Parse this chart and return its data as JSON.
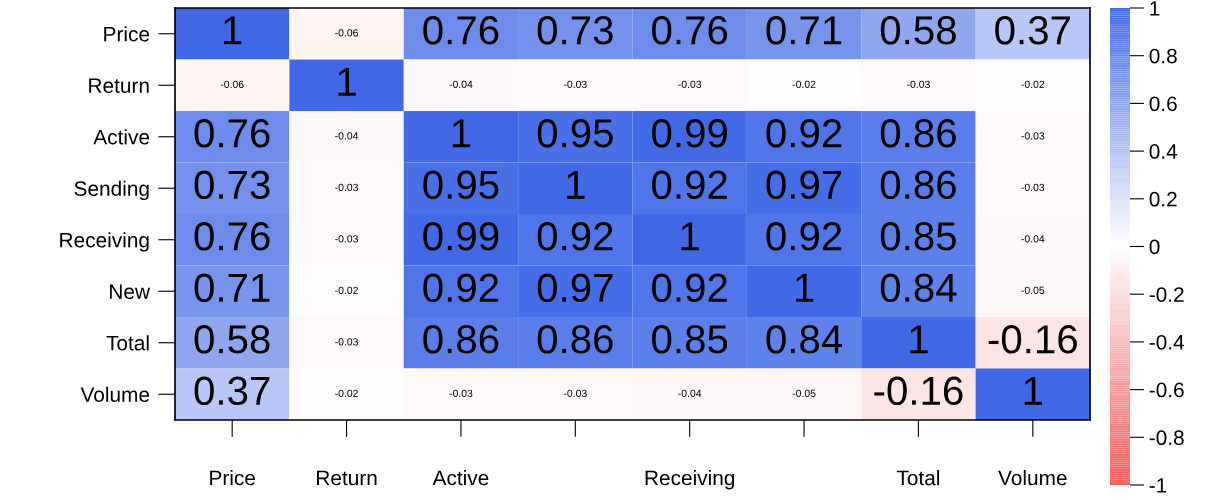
{
  "chart_data": {
    "type": "heatmap",
    "categories": [
      "Price",
      "Return",
      "Active",
      null,
      "Receiving",
      null,
      "Total",
      "Volume"
    ],
    "y_categories": [
      "Price",
      "Return",
      "Active",
      "Sending",
      "Receiving",
      "New",
      "Total",
      "Volume"
    ],
    "cells": [
      [
        1,
        -0.06,
        0.76,
        0.73,
        0.76,
        0.71,
        0.58,
        0.37
      ],
      [
        -0.06,
        1,
        -0.04,
        -0.03,
        -0.03,
        -0.02,
        -0.03,
        -0.02
      ],
      [
        0.76,
        -0.04,
        1,
        0.95,
        0.99,
        0.92,
        0.86,
        -0.03
      ],
      [
        0.73,
        -0.03,
        0.95,
        1,
        0.92,
        0.97,
        0.86,
        -0.03
      ],
      [
        0.76,
        -0.03,
        0.99,
        0.92,
        1,
        0.92,
        0.85,
        -0.04
      ],
      [
        0.71,
        -0.02,
        0.92,
        0.97,
        0.92,
        1,
        0.84,
        -0.05
      ],
      [
        0.58,
        -0.03,
        0.86,
        0.86,
        0.85,
        0.84,
        1,
        -0.16
      ],
      [
        0.37,
        -0.02,
        -0.03,
        -0.03,
        -0.04,
        -0.05,
        -0.16,
        1
      ]
    ],
    "clim": [
      -1,
      1
    ],
    "cticks": [
      -1,
      -0.8,
      -0.6,
      -0.4,
      -0.2,
      0,
      0.2,
      0.4,
      0.6,
      0.8,
      1
    ],
    "data_labels": true
  }
}
